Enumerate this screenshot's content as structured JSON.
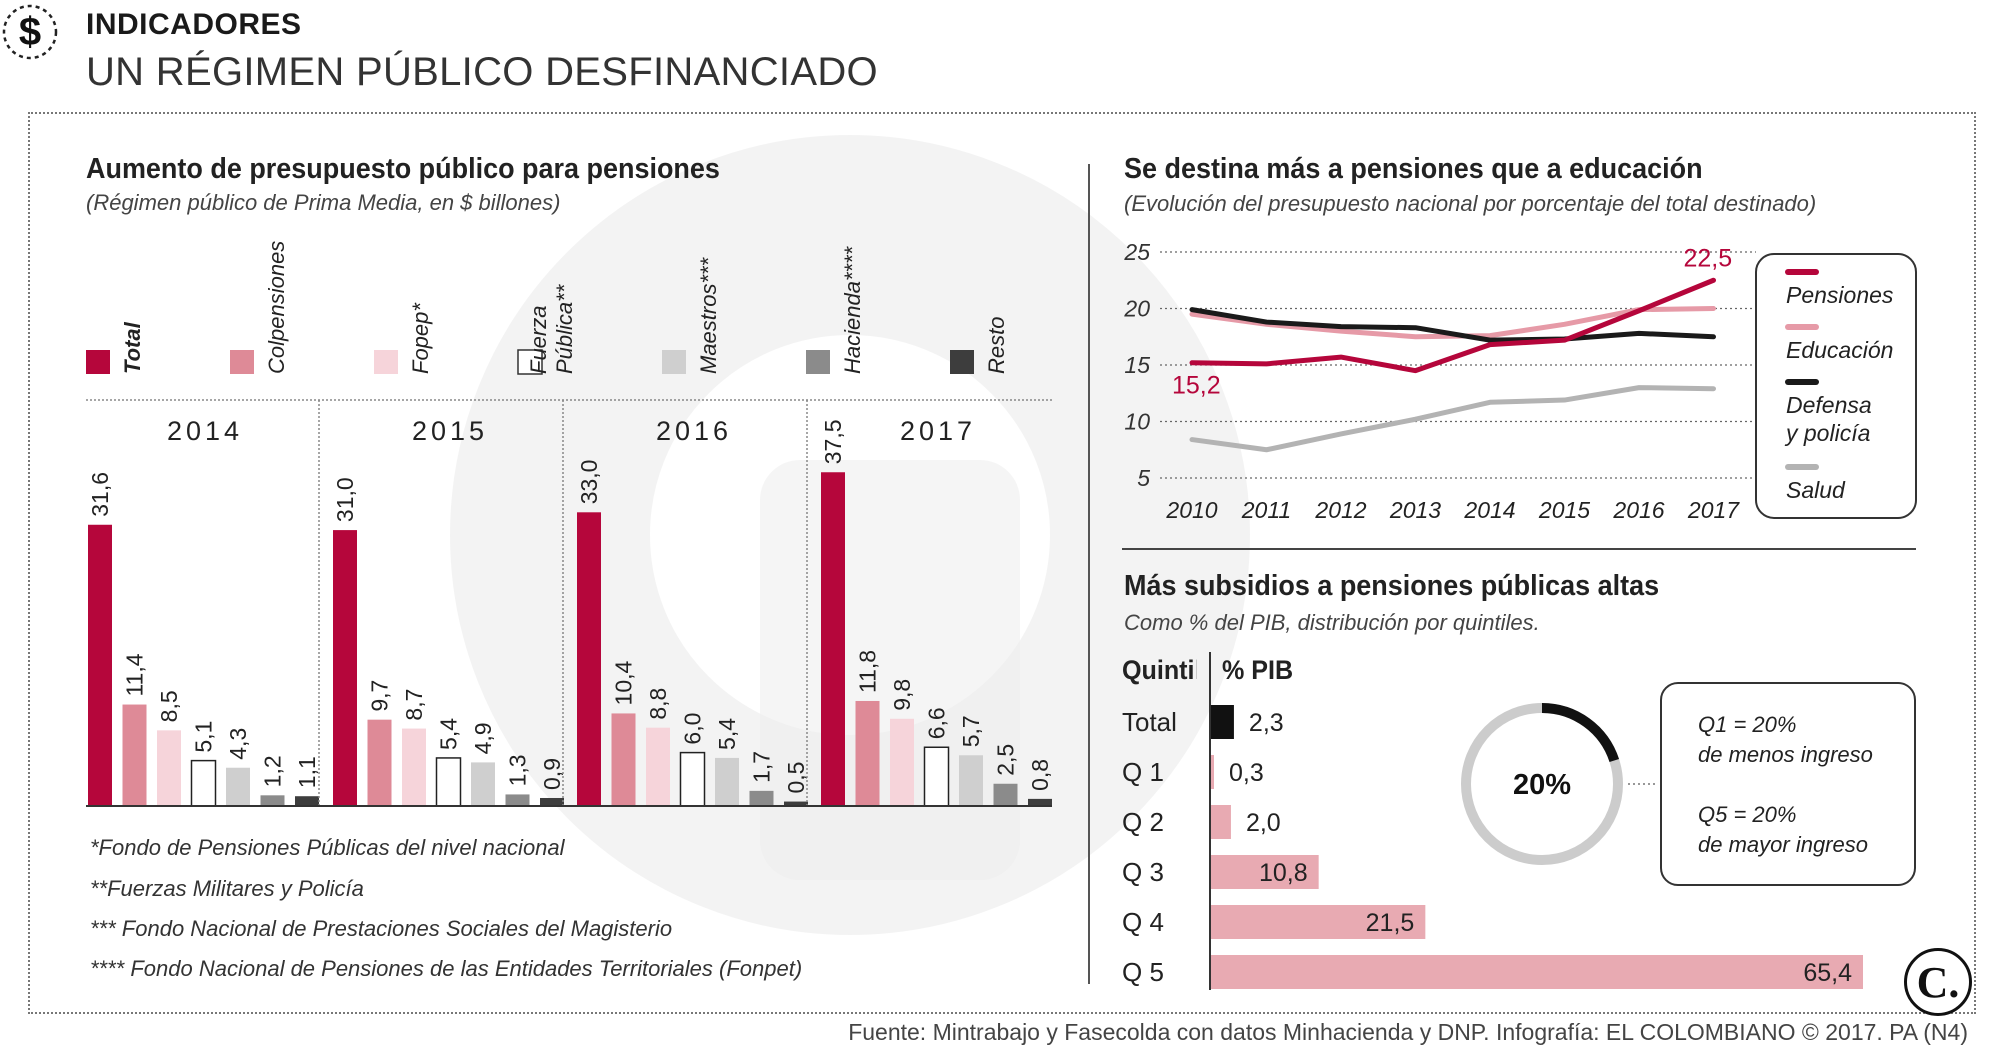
{
  "header": {
    "icon": "dollar-sign-icon",
    "kicker": "INDICADORES",
    "headline": "UN RÉGIMEN PÚBLICO DESFINANCIADO"
  },
  "source": "Fuente: Mintrabajo y Fasecolda con datos Minhacienda y DNP. Infografía: EL COLOMBIANO © 2017. PA (N4)",
  "logo": {
    "text": "C.",
    "icon": "el-colombiano-logo-icon"
  },
  "colors": {
    "total": "#b5063b",
    "colpensiones": "#de8a97",
    "fopep": "#f6d4da",
    "fuerza": "#ffffff",
    "maestros": "#cfcfcf",
    "hacienda": "#8b8b8b",
    "resto": "#3d3d3d",
    "pensiones": "#b5063b",
    "educacion": "#e69aa7",
    "defensa": "#1a1a1a",
    "salud": "#b3b3b3",
    "quintil_bar": "#e8aab2",
    "total_bar": "#111111"
  },
  "left": {
    "title": "Aumento de presupuesto público para pensiones",
    "subtitle": "(Régimen público de Prima Media, en $ billones)",
    "footnotes": [
      "*Fondo de Pensiones Públicas del nivel nacional",
      "**Fuerzas Militares y Policía",
      "*** Fondo Nacional de Prestaciones Sociales del Magisterio",
      "**** Fondo Nacional de Pensiones de las Entidades Territoriales (Fonpet)"
    ]
  },
  "line_section": {
    "title": "Se destina más a pensiones que a educación",
    "subtitle": "(Evolución del presupuesto nacional por porcentaje del total destinado)"
  },
  "quintil_section": {
    "title": "Más subsidios a pensiones públicas altas",
    "subtitle": "Como % del PIB, distribución por quintiles.",
    "col_quintil": "Quintil",
    "col_pib": "% PIB",
    "donut_label": "20%",
    "notes": [
      "Q1 = 20%",
      "de menos ingreso",
      "Q5 = 20%",
      "de mayor ingreso"
    ]
  },
  "chart_data": [
    {
      "type": "bar",
      "title": "Aumento de presupuesto público para pensiones",
      "categories": [
        "2014",
        "2015",
        "2016",
        "2017"
      ],
      "legend": [
        {
          "name": "Total",
          "lines": [
            "Total"
          ]
        },
        {
          "name": "Colpensiones",
          "lines": [
            "Colpensiones"
          ]
        },
        {
          "name": "Fopep*",
          "lines": [
            "Fopep*"
          ]
        },
        {
          "name": "Fuerza Pública**",
          "lines": [
            "Fuerza",
            "Pública**"
          ]
        },
        {
          "name": "Maestros***",
          "lines": [
            "Maestros***"
          ]
        },
        {
          "name": "Hacienda****",
          "lines": [
            "Hacienda****"
          ]
        },
        {
          "name": "Resto",
          "lines": [
            "Resto"
          ]
        }
      ],
      "series": [
        {
          "name": "Total",
          "values": [
            31.6,
            31.0,
            33.0,
            37.5
          ],
          "labels": [
            "31,6",
            "31,0",
            "33,0",
            "37,5"
          ]
        },
        {
          "name": "Colpensiones",
          "values": [
            11.4,
            9.7,
            10.4,
            11.8
          ],
          "labels": [
            "11,4",
            "9,7",
            "10,4",
            "11,8"
          ]
        },
        {
          "name": "Fopep*",
          "values": [
            8.5,
            8.7,
            8.8,
            9.8
          ],
          "labels": [
            "8,5",
            "8,7",
            "8,8",
            "9,8"
          ]
        },
        {
          "name": "Fuerza Pública**",
          "values": [
            5.1,
            5.4,
            6.0,
            6.6
          ],
          "labels": [
            "5,1",
            "5,4",
            "6,0",
            "6,6"
          ]
        },
        {
          "name": "Maestros***",
          "values": [
            4.3,
            4.9,
            5.4,
            5.7
          ],
          "labels": [
            "4,3",
            "4,9",
            "5,4",
            "5,7"
          ]
        },
        {
          "name": "Hacienda****",
          "values": [
            1.2,
            1.3,
            1.7,
            2.5
          ],
          "labels": [
            "1,2",
            "1,3",
            "1,7",
            "2,5"
          ]
        },
        {
          "name": "Resto",
          "values": [
            1.1,
            0.9,
            0.5,
            0.8
          ],
          "labels": [
            "1,1",
            "0,9",
            "0,5",
            "0,8"
          ]
        }
      ],
      "ylim": [
        0,
        40
      ]
    },
    {
      "type": "line",
      "title": "Se destina más a pensiones que a educación",
      "x": [
        "2010",
        "2011",
        "2012",
        "2013",
        "2014",
        "2015",
        "2016",
        "2017"
      ],
      "ylim": [
        0,
        25
      ],
      "yticks": [
        "5",
        "10",
        "15",
        "20",
        "25"
      ],
      "series": [
        {
          "name": "Pensiones",
          "values": [
            15.2,
            15.1,
            15.7,
            14.5,
            16.8,
            17.2,
            19.8,
            22.5
          ]
        },
        {
          "name": "Educación",
          "values": [
            19.5,
            18.6,
            18.0,
            17.5,
            17.6,
            18.6,
            19.9,
            20.0
          ]
        },
        {
          "name": "Defensa y policía",
          "values": [
            19.9,
            18.8,
            18.4,
            18.3,
            17.2,
            17.3,
            17.8,
            17.5
          ]
        },
        {
          "name": "Salud",
          "values": [
            8.4,
            7.5,
            8.9,
            10.2,
            11.7,
            11.9,
            13.0,
            12.9
          ]
        }
      ],
      "legend": [
        {
          "name": "Pensiones",
          "lines": [
            "Pensiones"
          ]
        },
        {
          "name": "Educación",
          "lines": [
            "Educación"
          ]
        },
        {
          "name": "Defensa y policía",
          "lines": [
            "Defensa",
            "y policía"
          ]
        },
        {
          "name": "Salud",
          "lines": [
            "Salud"
          ]
        }
      ],
      "annotations": [
        {
          "series": "Pensiones",
          "x": "2010",
          "label": "15,2"
        },
        {
          "series": "Pensiones",
          "x": "2017",
          "label": "22,5"
        }
      ]
    },
    {
      "type": "bar",
      "orientation": "horizontal",
      "title": "Más subsidios a pensiones públicas altas",
      "categories": [
        "Total",
        "Q 1",
        "Q 2",
        "Q 3",
        "Q 4",
        "Q 5"
      ],
      "values": [
        2.3,
        0.3,
        2.0,
        10.8,
        21.5,
        65.4
      ],
      "labels": [
        "2,3",
        "0,3",
        "2,0",
        "10,8",
        "21,5",
        "65,4"
      ],
      "xlim": [
        0,
        65.4
      ]
    }
  ]
}
